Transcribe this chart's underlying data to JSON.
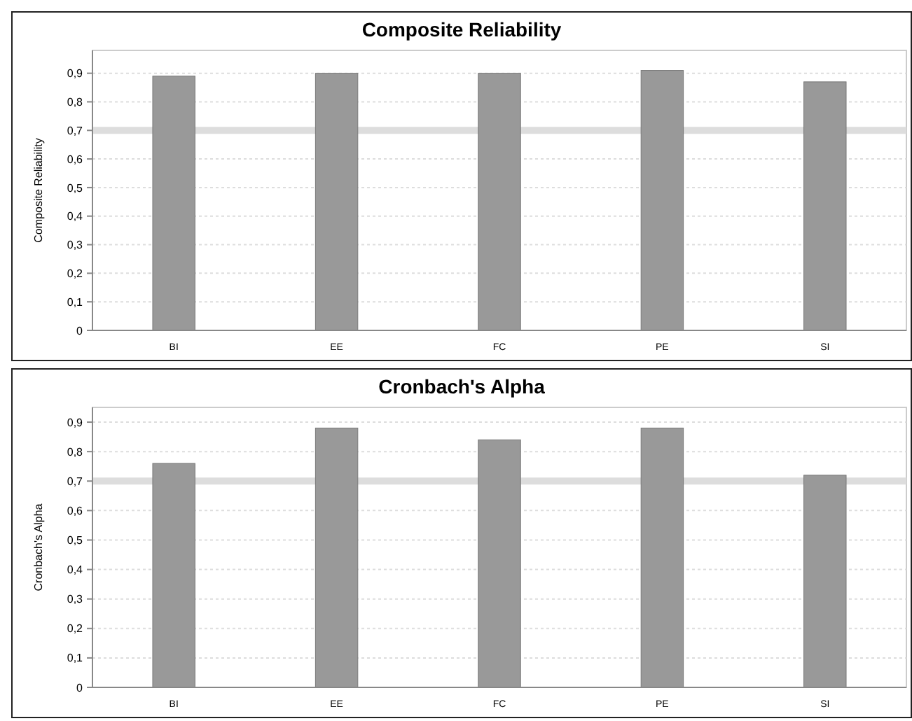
{
  "chart_data": [
    {
      "type": "bar",
      "title": "Composite Reliability",
      "ylabel": "Composite Reliability",
      "categories": [
        "BI",
        "EE",
        "FC",
        "PE",
        "SI"
      ],
      "values": [
        0.89,
        0.9,
        0.9,
        0.91,
        0.87
      ],
      "color": "#999999",
      "ylim": [
        0,
        0.98
      ],
      "yticks": [
        {
          "value": 0,
          "label": "0"
        },
        {
          "value": 0.1,
          "label": "0,1"
        },
        {
          "value": 0.2,
          "label": "0,2"
        },
        {
          "value": 0.3,
          "label": "0,3"
        },
        {
          "value": 0.4,
          "label": "0,4"
        },
        {
          "value": 0.5,
          "label": "0,5"
        },
        {
          "value": 0.6,
          "label": "0,6"
        },
        {
          "value": 0.7,
          "label": "0,7"
        },
        {
          "value": 0.8,
          "label": "0,8"
        },
        {
          "value": 0.9,
          "label": "0,9"
        }
      ],
      "grid": "y",
      "ref_lines": [
        {
          "axis": "y",
          "value": 0.7,
          "color": "#dddddd"
        }
      ]
    },
    {
      "type": "bar",
      "title": "Cronbach's Alpha",
      "ylabel": "Cronbach's Alpha",
      "categories": [
        "BI",
        "EE",
        "FC",
        "PE",
        "SI"
      ],
      "values": [
        0.76,
        0.88,
        0.84,
        0.88,
        0.72
      ],
      "color": "#999999",
      "ylim": [
        0,
        0.95
      ],
      "yticks": [
        {
          "value": 0,
          "label": "0"
        },
        {
          "value": 0.1,
          "label": "0,1"
        },
        {
          "value": 0.2,
          "label": "0,2"
        },
        {
          "value": 0.3,
          "label": "0,3"
        },
        {
          "value": 0.4,
          "label": "0,4"
        },
        {
          "value": 0.5,
          "label": "0,5"
        },
        {
          "value": 0.6,
          "label": "0,6"
        },
        {
          "value": 0.7,
          "label": "0,7"
        },
        {
          "value": 0.8,
          "label": "0,8"
        },
        {
          "value": 0.9,
          "label": "0,9"
        }
      ],
      "grid": "y",
      "ref_lines": [
        {
          "axis": "y",
          "value": 0.7,
          "color": "#dddddd"
        }
      ]
    }
  ]
}
